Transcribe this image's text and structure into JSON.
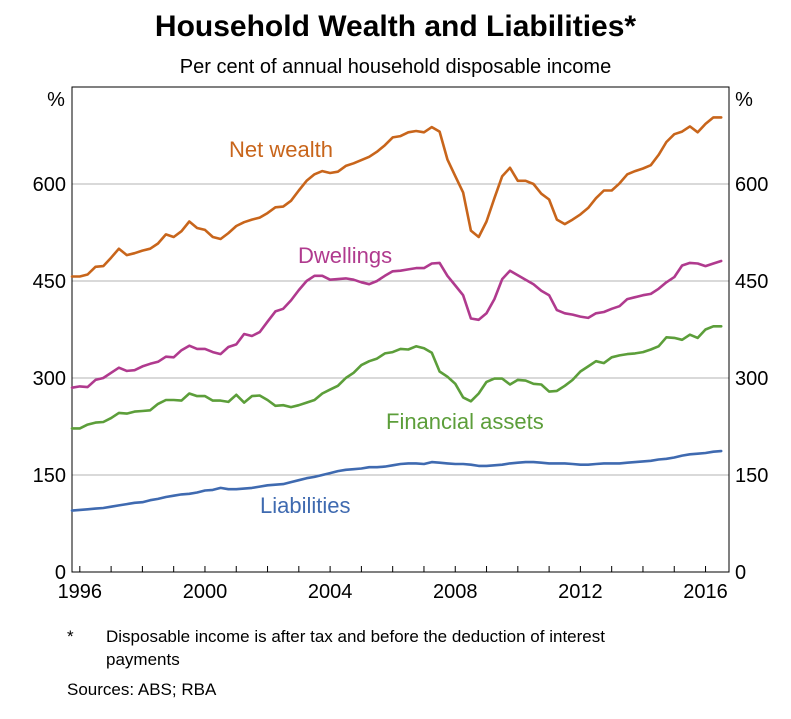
{
  "chart_data": {
    "type": "line",
    "title": "Household Wealth and Liabilities*",
    "subtitle": "Per cent of annual household disposable income",
    "ylabel_left": "%",
    "ylabel_right": "%",
    "ylim": [
      0,
      750
    ],
    "yticks": [
      0,
      150,
      300,
      450,
      600
    ],
    "xlim": [
      1995.75,
      2016.75
    ],
    "xticks": [
      1996,
      2000,
      2004,
      2008,
      2012,
      2016
    ],
    "grid": true,
    "series": [
      {
        "name": "Net wealth",
        "color": "#c8651b",
        "x": [
          1995.75,
          1996.0,
          1996.25,
          1996.5,
          1996.75,
          1997.0,
          1997.25,
          1997.5,
          1997.75,
          1998.0,
          1998.25,
          1998.5,
          1998.75,
          1999.0,
          1999.25,
          1999.5,
          1999.75,
          2000.0,
          2000.25,
          2000.5,
          2000.75,
          2001.0,
          2001.25,
          2001.5,
          2001.75,
          2002.0,
          2002.25,
          2002.5,
          2002.75,
          2003.0,
          2003.25,
          2003.5,
          2003.75,
          2004.0,
          2004.25,
          2004.5,
          2004.75,
          2005.0,
          2005.25,
          2005.5,
          2005.75,
          2006.0,
          2006.25,
          2006.5,
          2006.75,
          2007.0,
          2007.25,
          2007.5,
          2007.75,
          2008.0,
          2008.25,
          2008.5,
          2008.75,
          2009.0,
          2009.25,
          2009.5,
          2009.75,
          2010.0,
          2010.25,
          2010.5,
          2010.75,
          2011.0,
          2011.25,
          2011.5,
          2011.75,
          2012.0,
          2012.25,
          2012.5,
          2012.75,
          2013.0,
          2013.25,
          2013.5,
          2013.75,
          2014.0,
          2014.25,
          2014.5,
          2014.75,
          2015.0,
          2015.25,
          2015.5,
          2015.75,
          2016.0,
          2016.25,
          2016.5
        ],
        "values": [
          457,
          457,
          460,
          472,
          473,
          486,
          500,
          490,
          493,
          497,
          500,
          508,
          522,
          518,
          527,
          542,
          532,
          529,
          518,
          515,
          524,
          535,
          541,
          545,
          548,
          555,
          564,
          565,
          574,
          590,
          605,
          615,
          620,
          617,
          619,
          628,
          632,
          637,
          642,
          650,
          660,
          672,
          674,
          680,
          682,
          680,
          688,
          681,
          638,
          612,
          587,
          528,
          518,
          542,
          578,
          612,
          625,
          605,
          605,
          600,
          585,
          576,
          545,
          538,
          545,
          553,
          563,
          578,
          590,
          590,
          601,
          615,
          620,
          624,
          629,
          645,
          665,
          677,
          681,
          689,
          680,
          693,
          703,
          703
        ]
      },
      {
        "name": "Dwellings",
        "color": "#b03a8e",
        "x": [
          1995.75,
          1996.0,
          1996.25,
          1996.5,
          1996.75,
          1997.0,
          1997.25,
          1997.5,
          1997.75,
          1998.0,
          1998.25,
          1998.5,
          1998.75,
          1999.0,
          1999.25,
          1999.5,
          1999.75,
          2000.0,
          2000.25,
          2000.5,
          2000.75,
          2001.0,
          2001.25,
          2001.5,
          2001.75,
          2002.0,
          2002.25,
          2002.5,
          2002.75,
          2003.0,
          2003.25,
          2003.5,
          2003.75,
          2004.0,
          2004.25,
          2004.5,
          2004.75,
          2005.0,
          2005.25,
          2005.5,
          2005.75,
          2006.0,
          2006.25,
          2006.5,
          2006.75,
          2007.0,
          2007.25,
          2007.5,
          2007.75,
          2008.0,
          2008.25,
          2008.5,
          2008.75,
          2009.0,
          2009.25,
          2009.5,
          2009.75,
          2010.0,
          2010.25,
          2010.5,
          2010.75,
          2011.0,
          2011.25,
          2011.5,
          2011.75,
          2012.0,
          2012.25,
          2012.5,
          2012.75,
          2013.0,
          2013.25,
          2013.5,
          2013.75,
          2014.0,
          2014.25,
          2014.5,
          2014.75,
          2015.0,
          2015.25,
          2015.5,
          2015.75,
          2016.0,
          2016.25,
          2016.5
        ],
        "values": [
          285,
          287,
          286,
          297,
          300,
          308,
          316,
          311,
          312,
          318,
          322,
          325,
          333,
          332,
          343,
          350,
          345,
          345,
          340,
          337,
          348,
          352,
          368,
          365,
          371,
          387,
          403,
          407,
          420,
          436,
          450,
          458,
          458,
          452,
          453,
          454,
          452,
          448,
          445,
          450,
          458,
          465,
          466,
          468,
          470,
          470,
          477,
          478,
          458,
          443,
          428,
          392,
          390,
          400,
          422,
          453,
          466,
          459,
          452,
          445,
          435,
          428,
          405,
          400,
          398,
          395,
          393,
          400,
          402,
          407,
          411,
          422,
          425,
          428,
          430,
          438,
          448,
          456,
          474,
          478,
          477,
          473,
          477,
          481
        ]
      },
      {
        "name": "Financial assets",
        "color": "#5c9e3a",
        "x": [
          1995.75,
          1996.0,
          1996.25,
          1996.5,
          1996.75,
          1997.0,
          1997.25,
          1997.5,
          1997.75,
          1998.0,
          1998.25,
          1998.5,
          1998.75,
          1999.0,
          1999.25,
          1999.5,
          1999.75,
          2000.0,
          2000.25,
          2000.5,
          2000.75,
          2001.0,
          2001.25,
          2001.5,
          2001.75,
          2002.0,
          2002.25,
          2002.5,
          2002.75,
          2003.0,
          2003.25,
          2003.5,
          2003.75,
          2004.0,
          2004.25,
          2004.5,
          2004.75,
          2005.0,
          2005.25,
          2005.5,
          2005.75,
          2006.0,
          2006.25,
          2006.5,
          2006.75,
          2007.0,
          2007.25,
          2007.5,
          2007.75,
          2008.0,
          2008.25,
          2008.5,
          2008.75,
          2009.0,
          2009.25,
          2009.5,
          2009.75,
          2010.0,
          2010.25,
          2010.5,
          2010.75,
          2011.0,
          2011.25,
          2011.5,
          2011.75,
          2012.0,
          2012.25,
          2012.5,
          2012.75,
          2013.0,
          2013.25,
          2013.5,
          2013.75,
          2014.0,
          2014.25,
          2014.5,
          2014.75,
          2015.0,
          2015.25,
          2015.5,
          2015.75,
          2016.0,
          2016.25,
          2016.5
        ],
        "values": [
          222,
          222,
          228,
          231,
          232,
          238,
          246,
          245,
          248,
          249,
          250,
          260,
          266,
          266,
          265,
          276,
          272,
          272,
          265,
          265,
          263,
          274,
          262,
          272,
          273,
          266,
          257,
          258,
          255,
          258,
          262,
          266,
          276,
          282,
          288,
          300,
          308,
          320,
          326,
          330,
          338,
          340,
          345,
          344,
          349,
          346,
          339,
          310,
          302,
          291,
          270,
          264,
          276,
          294,
          299,
          299,
          290,
          297,
          296,
          291,
          290,
          279,
          280,
          288,
          297,
          310,
          318,
          326,
          323,
          332,
          335,
          337,
          338,
          340,
          344,
          349,
          363,
          362,
          359,
          367,
          362,
          375,
          380,
          380
        ]
      },
      {
        "name": "Liabilities",
        "color": "#3f6ab0",
        "x": [
          1995.75,
          1996.0,
          1996.25,
          1996.5,
          1996.75,
          1997.0,
          1997.25,
          1997.5,
          1997.75,
          1998.0,
          1998.25,
          1998.5,
          1998.75,
          1999.0,
          1999.25,
          1999.5,
          1999.75,
          2000.0,
          2000.25,
          2000.5,
          2000.75,
          2001.0,
          2001.25,
          2001.5,
          2001.75,
          2002.0,
          2002.25,
          2002.5,
          2002.75,
          2003.0,
          2003.25,
          2003.5,
          2003.75,
          2004.0,
          2004.25,
          2004.5,
          2004.75,
          2005.0,
          2005.25,
          2005.5,
          2005.75,
          2006.0,
          2006.25,
          2006.5,
          2006.75,
          2007.0,
          2007.25,
          2007.5,
          2007.75,
          2008.0,
          2008.25,
          2008.5,
          2008.75,
          2009.0,
          2009.25,
          2009.5,
          2009.75,
          2010.0,
          2010.25,
          2010.5,
          2010.75,
          2011.0,
          2011.25,
          2011.5,
          2011.75,
          2012.0,
          2012.25,
          2012.5,
          2012.75,
          2013.0,
          2013.25,
          2013.5,
          2013.75,
          2014.0,
          2014.25,
          2014.5,
          2014.75,
          2015.0,
          2015.25,
          2015.5,
          2015.75,
          2016.0,
          2016.25,
          2016.5
        ],
        "values": [
          95,
          96,
          97,
          98,
          99,
          101,
          103,
          105,
          107,
          108,
          111,
          113,
          116,
          118,
          120,
          121,
          123,
          126,
          127,
          130,
          128,
          128,
          129,
          130,
          132,
          134,
          135,
          136,
          139,
          142,
          145,
          147,
          150,
          153,
          156,
          158,
          159,
          160,
          162,
          162,
          163,
          165,
          167,
          168,
          168,
          167,
          170,
          169,
          168,
          167,
          167,
          166,
          164,
          164,
          165,
          166,
          168,
          169,
          170,
          170,
          169,
          168,
          168,
          168,
          167,
          166,
          166,
          167,
          168,
          168,
          168,
          169,
          170,
          171,
          172,
          174,
          175,
          177,
          180,
          182,
          183,
          184,
          186,
          187
        ]
      }
    ],
    "annotations": [
      "Net wealth",
      "Dwellings",
      "Financial assets",
      "Liabilities"
    ]
  },
  "footnote": {
    "marker": "*",
    "line1": "Disposable income is after tax and before the deduction of interest",
    "line2": "payments",
    "sources": "Sources:   ABS; RBA"
  }
}
